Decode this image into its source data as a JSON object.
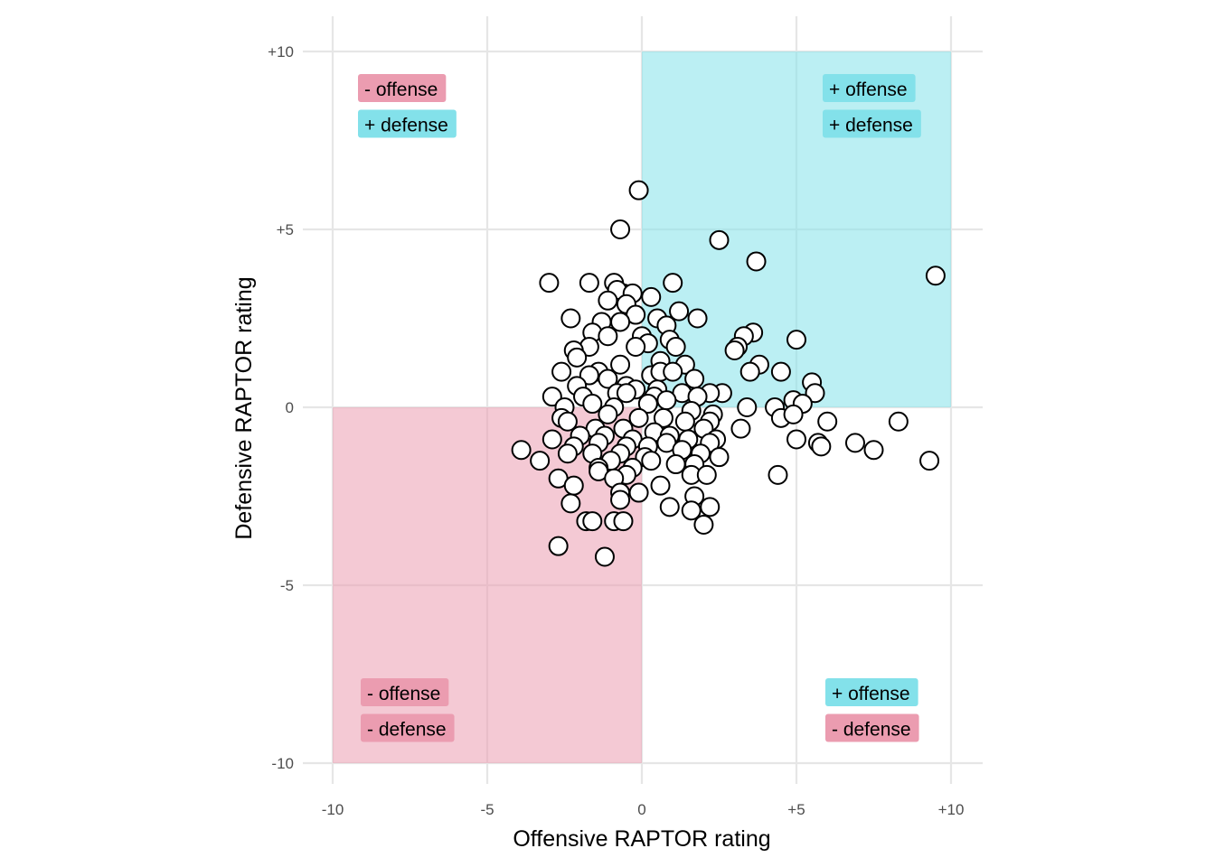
{
  "chart_data": {
    "type": "scatter",
    "title": "",
    "xlabel": "Offensive RAPTOR rating",
    "ylabel": "Defensive RAPTOR rating",
    "xlim": [
      -10,
      10
    ],
    "ylim": [
      -10,
      10
    ],
    "x_ticks": [
      {
        "value": -10,
        "label": "-10"
      },
      {
        "value": -5,
        "label": "-5"
      },
      {
        "value": 0,
        "label": "0"
      },
      {
        "value": 5,
        "label": "+5"
      },
      {
        "value": 10,
        "label": "+10"
      }
    ],
    "y_ticks": [
      {
        "value": -10,
        "label": "-10"
      },
      {
        "value": -5,
        "label": "-5"
      },
      {
        "value": 0,
        "label": "0"
      },
      {
        "value": 5,
        "label": "+5"
      },
      {
        "value": 10,
        "label": "+10"
      }
    ],
    "grid": true,
    "colors": {
      "positive": "#83e1ea",
      "negative": "#eb9cb0",
      "grid": "#e6e6e6",
      "point_fill": "#ffffff",
      "point_stroke": "#000000"
    },
    "quadrants": [
      {
        "x": [
          0,
          10
        ],
        "y": [
          0,
          10
        ],
        "color": "positive"
      },
      {
        "x": [
          -10,
          0
        ],
        "y": [
          -10,
          0
        ],
        "color": "negative"
      }
    ],
    "quadrant_labels": [
      {
        "corner": "top-left",
        "lines": [
          {
            "text": "- offense",
            "color": "negative"
          },
          {
            "text": "+ defense",
            "color": "positive"
          }
        ]
      },
      {
        "corner": "top-right",
        "lines": [
          {
            "text": "+ offense",
            "color": "positive"
          },
          {
            "text": "+ defense",
            "color": "positive"
          }
        ]
      },
      {
        "corner": "bottom-left",
        "lines": [
          {
            "text": "- offense",
            "color": "negative"
          },
          {
            "text": "- defense",
            "color": "negative"
          }
        ]
      },
      {
        "corner": "bottom-right",
        "lines": [
          {
            "text": "+ offense",
            "color": "positive"
          },
          {
            "text": "- defense",
            "color": "negative"
          }
        ]
      }
    ],
    "points": [
      [
        -0.1,
        6.1
      ],
      [
        -0.7,
        5.0
      ],
      [
        2.5,
        4.7
      ],
      [
        3.7,
        4.1
      ],
      [
        9.5,
        3.7
      ],
      [
        1.0,
        3.5
      ],
      [
        -3.0,
        3.5
      ],
      [
        -1.7,
        3.5
      ],
      [
        -0.9,
        3.5
      ],
      [
        -0.6,
        3.2
      ],
      [
        -0.8,
        3.3
      ],
      [
        -0.3,
        3.2
      ],
      [
        0.3,
        3.1
      ],
      [
        -1.1,
        3.0
      ],
      [
        -0.5,
        2.9
      ],
      [
        1.2,
        2.7
      ],
      [
        -0.2,
        2.6
      ],
      [
        0.5,
        2.5
      ],
      [
        1.8,
        2.5
      ],
      [
        -2.3,
        2.5
      ],
      [
        -1.3,
        2.4
      ],
      [
        -0.7,
        2.4
      ],
      [
        0.8,
        2.3
      ],
      [
        -1.6,
        2.1
      ],
      [
        -1.1,
        2.0
      ],
      [
        0.0,
        2.0
      ],
      [
        0.2,
        1.8
      ],
      [
        0.9,
        1.9
      ],
      [
        3.6,
        2.1
      ],
      [
        3.3,
        2.0
      ],
      [
        5.0,
        1.9
      ],
      [
        -1.7,
        1.7
      ],
      [
        -0.2,
        1.7
      ],
      [
        1.1,
        1.7
      ],
      [
        3.1,
        1.7
      ],
      [
        3.0,
        1.6
      ],
      [
        -2.2,
        1.6
      ],
      [
        -2.1,
        1.4
      ],
      [
        0.6,
        1.3
      ],
      [
        1.4,
        1.2
      ],
      [
        3.8,
        1.2
      ],
      [
        -0.7,
        1.2
      ],
      [
        -1.4,
        1.0
      ],
      [
        -2.6,
        1.0
      ],
      [
        -1.7,
        0.9
      ],
      [
        0.3,
        0.9
      ],
      [
        0.6,
        1.0
      ],
      [
        1.0,
        1.0
      ],
      [
        1.7,
        0.8
      ],
      [
        3.5,
        1.0
      ],
      [
        4.5,
        1.0
      ],
      [
        -1.1,
        0.8
      ],
      [
        -0.5,
        0.6
      ],
      [
        -0.2,
        0.5
      ],
      [
        1.3,
        0.4
      ],
      [
        -2.1,
        0.6
      ],
      [
        0.5,
        0.5
      ],
      [
        2.6,
        0.4
      ],
      [
        2.2,
        0.4
      ],
      [
        5.5,
        0.7
      ],
      [
        5.6,
        0.4
      ],
      [
        -2.9,
        0.3
      ],
      [
        -1.9,
        0.3
      ],
      [
        -0.8,
        0.4
      ],
      [
        -0.5,
        0.4
      ],
      [
        0.4,
        0.3
      ],
      [
        0.8,
        0.2
      ],
      [
        1.8,
        0.3
      ],
      [
        3.4,
        0.0
      ],
      [
        4.3,
        0.0
      ],
      [
        4.9,
        0.2
      ],
      [
        5.2,
        0.1
      ],
      [
        -2.5,
        0.0
      ],
      [
        -1.6,
        0.1
      ],
      [
        -0.9,
        0.0
      ],
      [
        0.2,
        0.1
      ],
      [
        1.6,
        -0.1
      ],
      [
        2.3,
        -0.2
      ],
      [
        4.5,
        -0.3
      ],
      [
        4.9,
        -0.2
      ],
      [
        -2.6,
        -0.3
      ],
      [
        -1.1,
        -0.2
      ],
      [
        -0.1,
        -0.3
      ],
      [
        0.7,
        -0.3
      ],
      [
        1.4,
        -0.4
      ],
      [
        2.2,
        -0.4
      ],
      [
        2.0,
        -0.6
      ],
      [
        3.2,
        -0.6
      ],
      [
        6.0,
        -0.4
      ],
      [
        8.3,
        -0.4
      ],
      [
        -2.4,
        -0.4
      ],
      [
        -1.5,
        -0.6
      ],
      [
        -0.6,
        -0.6
      ],
      [
        0.4,
        -0.7
      ],
      [
        -2.0,
        -0.8
      ],
      [
        -1.2,
        -0.8
      ],
      [
        -0.3,
        -0.9
      ],
      [
        0.9,
        -0.8
      ],
      [
        1.5,
        -0.9
      ],
      [
        2.4,
        -0.9
      ],
      [
        5.0,
        -0.9
      ],
      [
        5.7,
        -1.0
      ],
      [
        5.8,
        -1.1
      ],
      [
        6.9,
        -1.0
      ],
      [
        7.5,
        -1.2
      ],
      [
        9.3,
        -1.5
      ],
      [
        -2.9,
        -0.9
      ],
      [
        -2.2,
        -1.1
      ],
      [
        -1.4,
        -1.0
      ],
      [
        -0.5,
        -1.1
      ],
      [
        0.2,
        -1.1
      ],
      [
        0.8,
        -1.0
      ],
      [
        1.3,
        -1.2
      ],
      [
        2.2,
        -1.0
      ],
      [
        -3.9,
        -1.2
      ],
      [
        -2.4,
        -1.3
      ],
      [
        -1.6,
        -1.3
      ],
      [
        -0.7,
        -1.3
      ],
      [
        0.1,
        -1.4
      ],
      [
        1.9,
        -1.3
      ],
      [
        2.5,
        -1.4
      ],
      [
        -3.3,
        -1.5
      ],
      [
        -1.0,
        -1.5
      ],
      [
        0.3,
        -1.5
      ],
      [
        1.1,
        -1.6
      ],
      [
        1.7,
        -1.6
      ],
      [
        -1.4,
        -1.7
      ],
      [
        -0.3,
        -1.7
      ],
      [
        -1.4,
        -1.8
      ],
      [
        -0.5,
        -1.9
      ],
      [
        1.6,
        -1.9
      ],
      [
        2.1,
        -1.9
      ],
      [
        4.4,
        -1.9
      ],
      [
        -2.7,
        -2.0
      ],
      [
        -0.9,
        -2.0
      ],
      [
        -2.2,
        -2.2
      ],
      [
        0.6,
        -2.2
      ],
      [
        -0.1,
        -2.4
      ],
      [
        -0.7,
        -2.4
      ],
      [
        -2.3,
        -2.7
      ],
      [
        -0.7,
        -2.6
      ],
      [
        1.7,
        -2.5
      ],
      [
        0.9,
        -2.8
      ],
      [
        2.2,
        -2.8
      ],
      [
        1.6,
        -2.9
      ],
      [
        -1.8,
        -3.2
      ],
      [
        -1.6,
        -3.2
      ],
      [
        -0.9,
        -3.2
      ],
      [
        -0.6,
        -3.2
      ],
      [
        2.0,
        -3.3
      ],
      [
        -2.7,
        -3.9
      ],
      [
        -1.2,
        -4.2
      ]
    ]
  }
}
